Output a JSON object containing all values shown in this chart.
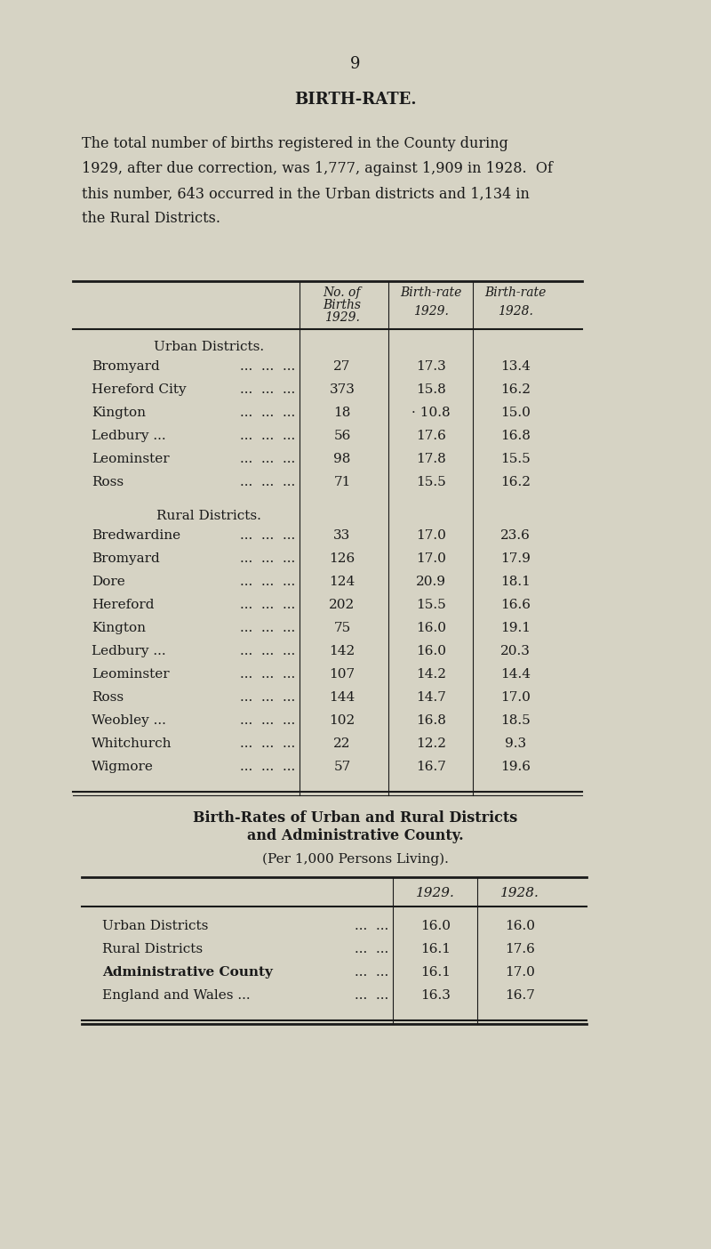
{
  "page_number": "9",
  "title": "BIRTH-RATE.",
  "intro_text": "The total number of births registered in the County during\n1929, after due correction, was 1,777, against 1,909 in 1928.  Of\nthis number, 643 occurred in the Urban districts and 1,134 in\nthe Rural Districts.",
  "urban_section_label": "Urban Districts.",
  "urban_rows": [
    [
      "Bromyard",
      "27",
      "17.3",
      "13.4"
    ],
    [
      "Hereford City",
      "373",
      "15.8",
      "16.2"
    ],
    [
      "Kington",
      "18",
      "· 10.8",
      "15.0"
    ],
    [
      "Ledbury ...",
      "56",
      "17.6",
      "16.8"
    ],
    [
      "Leominster",
      "98",
      "17.8",
      "15.5"
    ],
    [
      "Ross",
      "71",
      "15.5",
      "16.2"
    ]
  ],
  "rural_section_label": "Rural Districts.",
  "rural_rows": [
    [
      "Bredwardine",
      "33",
      "17.0",
      "23.6"
    ],
    [
      "Bromyard",
      "126",
      "17.0",
      "17.9"
    ],
    [
      "Dore",
      "124",
      "20.9",
      "18.1"
    ],
    [
      "Hereford",
      "202",
      "15.5",
      "16.6"
    ],
    [
      "Kington",
      "75",
      "16.0",
      "19.1"
    ],
    [
      "Ledbury ...",
      "142",
      "16.0",
      "20.3"
    ],
    [
      "Leominster",
      "107",
      "14.2",
      "14.4"
    ],
    [
      "Ross",
      "144",
      "14.7",
      "17.0"
    ],
    [
      "Weobley ...",
      "102",
      "16.8",
      "18.5"
    ],
    [
      "Whitchurch",
      "22",
      "12.2",
      "9.3"
    ],
    [
      "Wigmore",
      "57",
      "16.7",
      "19.6"
    ]
  ],
  "table2_title_line1": "Birth-Rates of Urban and Rural Districts",
  "table2_title_line2": "and Administrative County.",
  "table2_subtitle": "(Per 1,000 Persons Living).",
  "table2_rows": [
    [
      "Urban Districts",
      "16.0",
      "16.0",
      false
    ],
    [
      "Rural Districts",
      "16.1",
      "17.6",
      false
    ],
    [
      "Administrative County",
      "16.1",
      "17.0",
      true
    ],
    [
      "England and Wales ...",
      "16.3",
      "16.7",
      false
    ]
  ],
  "bg_color": "#d6d3c4",
  "text_color": "#1a1a1a"
}
